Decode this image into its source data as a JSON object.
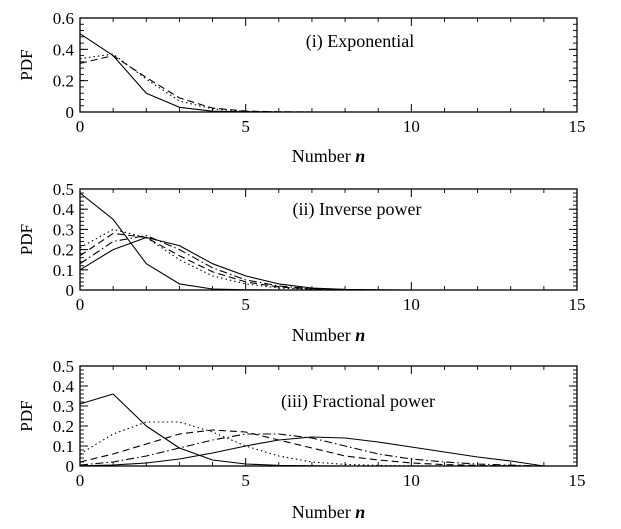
{
  "chart_data": [
    {
      "type": "line",
      "title": "(i) Exponential",
      "xlabel": "Number",
      "xlabel_var": "n",
      "ylabel": "PDF",
      "xlim": [
        0,
        15
      ],
      "ylim": [
        0,
        0.6
      ],
      "xticks": [
        0,
        5,
        10,
        15
      ],
      "yticks": [
        0,
        0.2,
        0.4,
        0.6
      ],
      "ytick_labels": [
        "0",
        "0.2",
        "0.4",
        "0.6"
      ],
      "grid": false,
      "series": [
        {
          "style": "solid",
          "x": [
            0,
            1,
            2,
            3,
            4,
            5,
            6,
            7,
            8,
            9,
            10,
            11,
            12,
            13,
            14
          ],
          "values": [
            0.5,
            0.36,
            0.12,
            0.03,
            0.005,
            0.001,
            0,
            0,
            0,
            0,
            0,
            0,
            0,
            0,
            0
          ]
        },
        {
          "style": "dotted",
          "x": [
            0,
            1,
            2,
            3,
            4,
            5,
            6,
            7,
            8,
            9,
            10,
            11,
            12,
            13,
            14
          ],
          "values": [
            0.34,
            0.37,
            0.21,
            0.07,
            0.02,
            0.004,
            0.001,
            0,
            0,
            0,
            0,
            0,
            0,
            0,
            0
          ]
        },
        {
          "style": "dashed",
          "x": [
            0,
            1,
            2,
            3,
            4,
            5,
            6,
            7,
            8,
            9,
            10,
            11,
            12,
            13,
            14
          ],
          "values": [
            0.31,
            0.36,
            0.22,
            0.09,
            0.025,
            0.006,
            0.001,
            0,
            0,
            0,
            0,
            0,
            0,
            0,
            0
          ]
        }
      ]
    },
    {
      "type": "line",
      "title": "(ii) Inverse power",
      "xlabel": "Number",
      "xlabel_var": "n",
      "ylabel": "PDF",
      "xlim": [
        0,
        15
      ],
      "ylim": [
        0,
        0.5
      ],
      "xticks": [
        0,
        5,
        10,
        15
      ],
      "yticks": [
        0,
        0.1,
        0.2,
        0.3,
        0.4,
        0.5
      ],
      "ytick_labels": [
        "0",
        "0.1",
        "0.2",
        "0.3",
        "0.4",
        "0.5"
      ],
      "grid": false,
      "series": [
        {
          "style": "solid",
          "x": [
            0,
            1,
            2,
            3,
            4,
            5,
            6,
            7,
            8,
            9,
            10,
            11,
            12,
            13,
            14
          ],
          "values": [
            0.48,
            0.35,
            0.13,
            0.03,
            0.005,
            0.001,
            0,
            0,
            0,
            0,
            0,
            0,
            0,
            0,
            0
          ]
        },
        {
          "style": "dotted",
          "x": [
            0,
            1,
            2,
            3,
            4,
            5,
            6,
            7,
            8,
            9,
            10,
            11,
            12,
            13,
            14
          ],
          "values": [
            0.21,
            0.3,
            0.26,
            0.15,
            0.07,
            0.03,
            0.01,
            0.003,
            0.001,
            0,
            0,
            0,
            0,
            0,
            0
          ]
        },
        {
          "style": "dashed",
          "x": [
            0,
            1,
            2,
            3,
            4,
            5,
            6,
            7,
            8,
            9,
            10,
            11,
            12,
            13,
            14
          ],
          "values": [
            0.17,
            0.28,
            0.26,
            0.17,
            0.09,
            0.04,
            0.015,
            0.005,
            0.001,
            0,
            0,
            0,
            0,
            0,
            0
          ]
        },
        {
          "style": "dashdot",
          "x": [
            0,
            1,
            2,
            3,
            4,
            5,
            6,
            7,
            8,
            9,
            10,
            11,
            12,
            13,
            14
          ],
          "values": [
            0.13,
            0.24,
            0.27,
            0.2,
            0.11,
            0.05,
            0.02,
            0.007,
            0.002,
            0,
            0,
            0,
            0,
            0,
            0
          ]
        },
        {
          "style": "solid",
          "x": [
            0,
            1,
            2,
            3,
            4,
            5,
            6,
            7,
            8,
            9,
            10,
            11,
            12,
            13,
            14
          ],
          "values": [
            0.1,
            0.2,
            0.26,
            0.22,
            0.13,
            0.07,
            0.03,
            0.01,
            0.003,
            0.001,
            0,
            0,
            0,
            0,
            0
          ]
        }
      ]
    },
    {
      "type": "line",
      "title": "(iii) Fractional power",
      "xlabel": "Number",
      "xlabel_var": "n",
      "ylabel": "PDF",
      "xlim": [
        0,
        15
      ],
      "ylim": [
        0,
        0.5
      ],
      "xticks": [
        0,
        5,
        10,
        15
      ],
      "yticks": [
        0,
        0.1,
        0.2,
        0.3,
        0.4,
        0.5
      ],
      "ytick_labels": [
        "0",
        "0.1",
        "0.2",
        "0.3",
        "0.4",
        "0.5"
      ],
      "grid": false,
      "series": [
        {
          "style": "solid",
          "x": [
            0,
            1,
            2,
            3,
            4,
            5,
            6,
            7,
            8,
            9,
            10,
            11,
            12,
            13,
            14
          ],
          "values": [
            0.31,
            0.36,
            0.2,
            0.09,
            0.03,
            0.01,
            0.003,
            0.001,
            0,
            0,
            0,
            0,
            0,
            0,
            0
          ]
        },
        {
          "style": "dotted",
          "x": [
            0,
            1,
            2,
            3,
            4,
            5,
            6,
            7,
            8,
            9,
            10,
            11,
            12,
            13,
            14
          ],
          "values": [
            0.06,
            0.16,
            0.22,
            0.22,
            0.17,
            0.1,
            0.05,
            0.02,
            0.008,
            0.003,
            0.001,
            0,
            0,
            0,
            0
          ]
        },
        {
          "style": "dashed",
          "x": [
            0,
            1,
            2,
            3,
            4,
            5,
            6,
            7,
            8,
            9,
            10,
            11,
            12,
            13,
            14
          ],
          "values": [
            0.02,
            0.06,
            0.11,
            0.16,
            0.18,
            0.17,
            0.13,
            0.09,
            0.05,
            0.03,
            0.015,
            0.007,
            0.003,
            0.001,
            0
          ]
        },
        {
          "style": "dashdot",
          "x": [
            0,
            1,
            2,
            3,
            4,
            5,
            6,
            7,
            8,
            9,
            10,
            11,
            12,
            13,
            14
          ],
          "values": [
            0.005,
            0.02,
            0.05,
            0.09,
            0.13,
            0.16,
            0.16,
            0.14,
            0.1,
            0.06,
            0.035,
            0.02,
            0.01,
            0.004,
            0
          ]
        },
        {
          "style": "solid",
          "x": [
            0,
            1,
            2,
            3,
            4,
            5,
            6,
            7,
            8,
            9,
            10,
            11,
            12,
            13,
            14
          ],
          "values": [
            0.001,
            0.005,
            0.015,
            0.035,
            0.065,
            0.1,
            0.13,
            0.145,
            0.14,
            0.12,
            0.095,
            0.07,
            0.045,
            0.025,
            0
          ]
        }
      ]
    }
  ]
}
